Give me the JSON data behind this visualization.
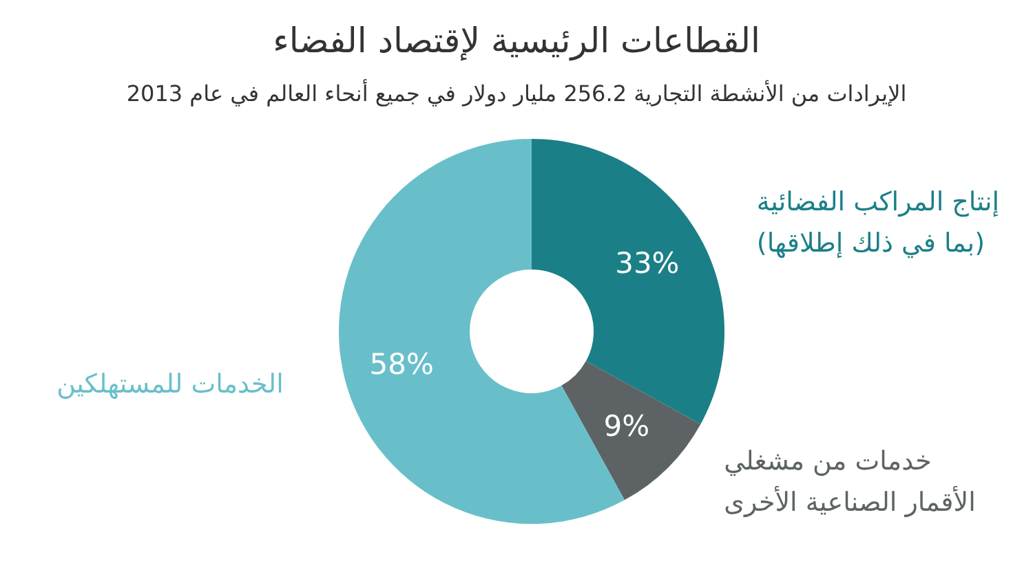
{
  "chart_data": {
    "type": "donut",
    "title": "القطاعات الرئيسية لإقتصاد الفضاء",
    "subtitle": "الإيرادات من الأنشطة التجارية 256.2 مليار دولار في جميع أنحاء العالم في عام 2013",
    "categories": [
      "إنتاج المراكب الفضائية\n(بما في ذلك إطلاقها)",
      "خدمات من مشغلي\nالأقمار الصناعية الأخرى",
      "الخدمات للمستهلكين"
    ],
    "values": [
      33,
      9,
      58
    ],
    "colors": [
      "#1b7f87",
      "#5d6364",
      "#68bfca"
    ],
    "value_labels": [
      "33%",
      "9%",
      "58%"
    ],
    "legend": false
  }
}
